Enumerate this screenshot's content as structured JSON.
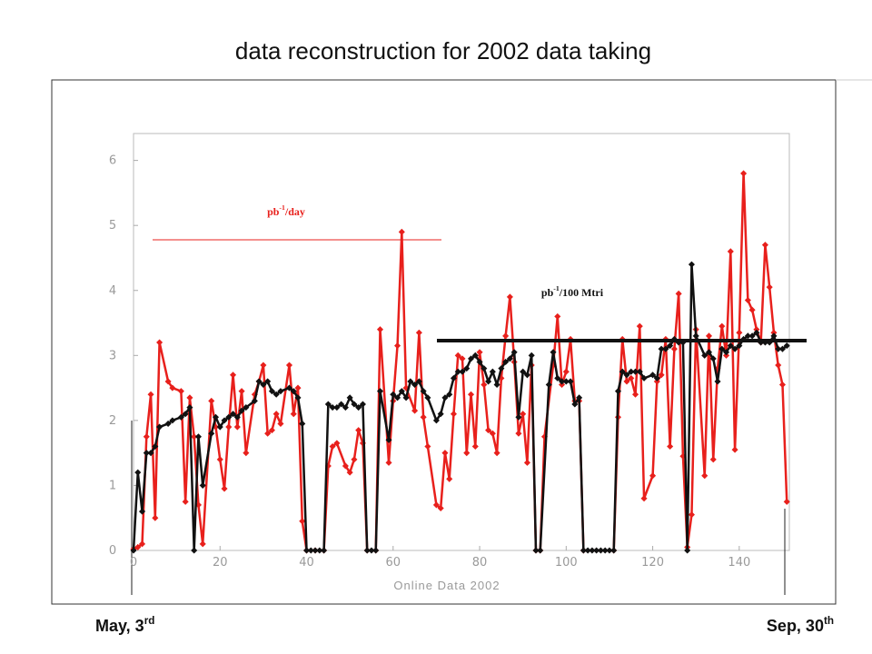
{
  "title": "data reconstruction for 2002 data taking",
  "footer": {
    "start": "May, 3rd",
    "end": "Sep, 30th"
  },
  "chart_data": {
    "type": "line",
    "xlabel": "Online Data 2002",
    "xlim": [
      0,
      152
    ],
    "ylim": [
      0,
      6.4
    ],
    "xticks": [
      0,
      20,
      40,
      60,
      80,
      100,
      120,
      140
    ],
    "yticks": [
      0,
      1,
      2,
      3,
      4,
      5,
      6
    ],
    "series": [
      {
        "name": "pb-1/day",
        "color": "#e8201c",
        "x": [
          0,
          1,
          2,
          3,
          4,
          5,
          6,
          8,
          9,
          11,
          12,
          13,
          14,
          15,
          16,
          18,
          19,
          20,
          21,
          22,
          23,
          24,
          25,
          26,
          28,
          29,
          30,
          31,
          32,
          33,
          34,
          36,
          37,
          38,
          39,
          40,
          42,
          44,
          45,
          46,
          47,
          49,
          50,
          51,
          52,
          53,
          54,
          56,
          57,
          59,
          60,
          61,
          62,
          63,
          65,
          66,
          67,
          68,
          70,
          71,
          72,
          73,
          74,
          75,
          76,
          77,
          78,
          79,
          80,
          81,
          82,
          83,
          84,
          85,
          86,
          87,
          88,
          89,
          90,
          91,
          92,
          93,
          94,
          95,
          97,
          98,
          99,
          100,
          101,
          102,
          103,
          104,
          111,
          112,
          113,
          114,
          115,
          116,
          117,
          118,
          120,
          121,
          122,
          123,
          124,
          125,
          126,
          127,
          128,
          129,
          130,
          132,
          133,
          134,
          135,
          136,
          137,
          138,
          139,
          140,
          141,
          142,
          143,
          144,
          145,
          146,
          147,
          148,
          149,
          150,
          151
        ],
        "values": [
          0.02,
          0.05,
          0.1,
          1.75,
          2.4,
          0.5,
          3.2,
          2.6,
          2.5,
          2.45,
          0.75,
          2.35,
          1.75,
          0.7,
          0.1,
          2.3,
          1.9,
          1.4,
          0.95,
          1.9,
          2.7,
          1.9,
          2.45,
          1.5,
          2.4,
          2.6,
          2.85,
          1.8,
          1.85,
          2.1,
          1.95,
          2.85,
          2.1,
          2.5,
          0.45,
          0,
          0,
          0,
          1.3,
          1.6,
          1.65,
          1.3,
          1.2,
          1.4,
          1.85,
          1.65,
          0,
          0,
          3.4,
          1.35,
          2.3,
          3.15,
          4.9,
          2.5,
          2.15,
          3.35,
          2.05,
          1.6,
          0.7,
          0.65,
          1.5,
          1.1,
          2.1,
          3.0,
          2.95,
          1.5,
          2.4,
          1.6,
          3.05,
          2.55,
          1.85,
          1.8,
          1.5,
          2.65,
          3.3,
          3.9,
          2.9,
          1.8,
          2.1,
          1.35,
          2.85,
          0,
          0,
          1.75,
          2.85,
          3.6,
          2.55,
          2.75,
          3.25,
          2.3,
          2.3,
          0,
          0,
          2.05,
          3.25,
          2.6,
          2.65,
          2.4,
          3.45,
          0.8,
          1.15,
          2.6,
          2.7,
          3.25,
          1.6,
          3.1,
          3.95,
          1.45,
          0.05,
          0.55,
          3.4,
          1.15,
          3.3,
          1.4,
          2.8,
          3.45,
          3.0,
          4.6,
          1.55,
          3.35,
          5.8,
          3.85,
          3.7,
          3.4,
          3.2,
          4.7,
          4.05,
          3.35,
          2.85,
          2.55,
          0.75
        ]
      },
      {
        "name": "pb-1/100 Mtri",
        "color": "#111111",
        "x": [
          0,
          1,
          2,
          3,
          4,
          5,
          6,
          8,
          9,
          11,
          12,
          13,
          14,
          15,
          16,
          18,
          19,
          20,
          21,
          22,
          23,
          24,
          25,
          26,
          28,
          29,
          30,
          31,
          32,
          33,
          34,
          36,
          37,
          38,
          39,
          40,
          41,
          42,
          43,
          44,
          45,
          46,
          47,
          48,
          49,
          50,
          51,
          52,
          53,
          54,
          55,
          56,
          57,
          59,
          60,
          61,
          62,
          63,
          64,
          65,
          66,
          67,
          68,
          70,
          71,
          72,
          73,
          74,
          75,
          76,
          77,
          78,
          79,
          80,
          81,
          82,
          83,
          84,
          85,
          86,
          87,
          88,
          89,
          90,
          91,
          92,
          93,
          94,
          96,
          97,
          98,
          99,
          100,
          101,
          102,
          103,
          104,
          105,
          106,
          107,
          108,
          109,
          110,
          111,
          112,
          113,
          114,
          115,
          116,
          117,
          118,
          120,
          121,
          122,
          123,
          124,
          125,
          126,
          127,
          128,
          129,
          130,
          132,
          133,
          134,
          135,
          136,
          137,
          138,
          139,
          140,
          141,
          142,
          143,
          144,
          145,
          146,
          147,
          148,
          149,
          150,
          151
        ],
        "values": [
          0,
          1.2,
          0.6,
          1.5,
          1.5,
          1.6,
          1.9,
          1.95,
          2.0,
          2.05,
          2.1,
          2.2,
          0,
          1.75,
          1.0,
          1.8,
          2.05,
          1.9,
          2.0,
          2.05,
          2.1,
          2.05,
          2.15,
          2.2,
          2.3,
          2.6,
          2.55,
          2.6,
          2.45,
          2.4,
          2.45,
          2.5,
          2.45,
          2.35,
          1.95,
          0,
          0,
          0,
          0,
          0,
          2.25,
          2.2,
          2.2,
          2.25,
          2.2,
          2.35,
          2.25,
          2.2,
          2.25,
          0,
          0,
          0,
          2.45,
          1.7,
          2.4,
          2.35,
          2.45,
          2.35,
          2.6,
          2.55,
          2.6,
          2.45,
          2.35,
          2.0,
          2.1,
          2.35,
          2.4,
          2.65,
          2.75,
          2.75,
          2.8,
          2.95,
          3.0,
          2.9,
          2.8,
          2.6,
          2.75,
          2.55,
          2.8,
          2.9,
          2.95,
          3.05,
          2.05,
          2.75,
          2.7,
          3.0,
          0,
          0,
          2.55,
          3.05,
          2.65,
          2.6,
          2.6,
          2.6,
          2.25,
          2.35,
          0,
          0,
          0,
          0,
          0,
          0,
          0,
          0,
          2.45,
          2.75,
          2.7,
          2.75,
          2.75,
          2.75,
          2.65,
          2.7,
          2.65,
          3.1,
          3.1,
          3.15,
          3.25,
          3.2,
          3.2,
          0,
          4.4,
          3.3,
          3.0,
          3.05,
          2.95,
          2.6,
          3.1,
          3.05,
          3.15,
          3.1,
          3.15,
          3.25,
          3.3,
          3.3,
          3.35,
          3.2,
          3.2,
          3.2,
          3.3,
          3.1,
          3.1,
          3.15
        ]
      }
    ]
  }
}
